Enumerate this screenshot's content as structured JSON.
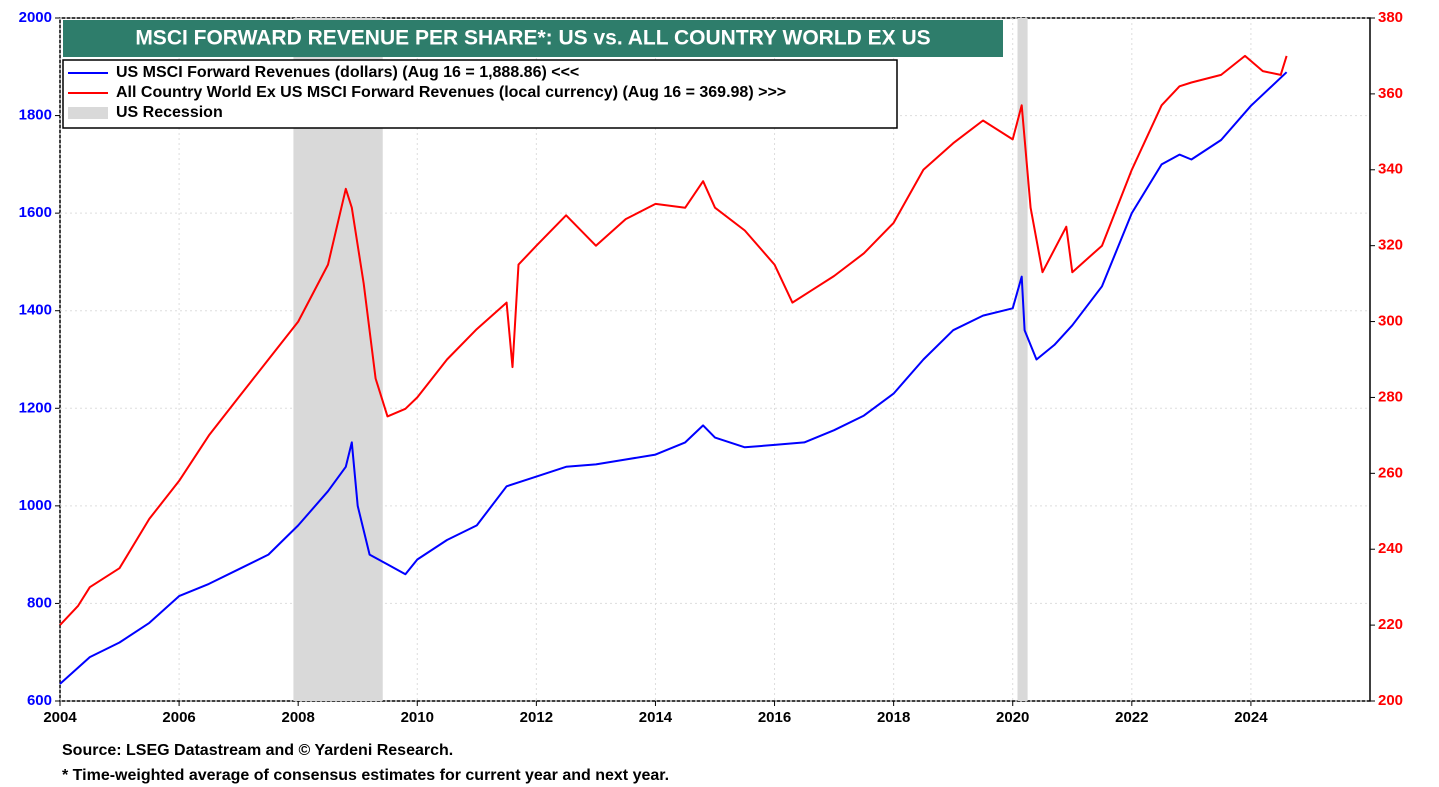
{
  "chart_data": {
    "type": "line",
    "title": "MSCI FORWARD REVENUE PER SHARE*: US vs. ALL COUNTRY WORLD EX US",
    "notes": [
      "Source: LSEG Datastream and © Yardeni Research.",
      "* Time-weighted average of consensus estimates for current year and next year."
    ],
    "xlim": [
      2004,
      2026
    ],
    "xticks": [
      2004,
      2006,
      2008,
      2010,
      2012,
      2014,
      2016,
      2018,
      2020,
      2022,
      2024
    ],
    "ylim": [
      600,
      2000
    ],
    "yticks": [
      600,
      800,
      1000,
      1200,
      1400,
      1600,
      1800,
      2000
    ],
    "y2lim": [
      200,
      380
    ],
    "y2ticks": [
      200,
      220,
      240,
      260,
      280,
      300,
      320,
      340,
      360,
      380
    ],
    "grid": true,
    "recession_name": "US Recession",
    "recession_color": "#d9d9d9",
    "recessions": [
      [
        2007.92,
        2009.42
      ],
      [
        2020.08,
        2020.25
      ]
    ],
    "series": [
      {
        "name": "US MSCI Forward Revenues (dollars) (Aug 16 = 1,888.86) <<<",
        "color": "#0000ff",
        "axis": "y",
        "x": [
          2004.0,
          2004.5,
          2005.0,
          2005.5,
          2006.0,
          2006.5,
          2007.0,
          2007.5,
          2008.0,
          2008.5,
          2008.8,
          2008.9,
          2009.0,
          2009.2,
          2009.5,
          2009.8,
          2010.0,
          2010.5,
          2011.0,
          2011.5,
          2012.0,
          2012.5,
          2013.0,
          2013.5,
          2014.0,
          2014.5,
          2014.8,
          2015.0,
          2015.5,
          2016.0,
          2016.5,
          2017.0,
          2017.5,
          2018.0,
          2018.5,
          2019.0,
          2019.5,
          2020.0,
          2020.15,
          2020.2,
          2020.4,
          2020.7,
          2021.0,
          2021.5,
          2022.0,
          2022.5,
          2022.8,
          2023.0,
          2023.5,
          2024.0,
          2024.6
        ],
        "values": [
          635,
          690,
          720,
          760,
          815,
          840,
          870,
          900,
          960,
          1030,
          1080,
          1130,
          1000,
          900,
          880,
          860,
          890,
          930,
          960,
          1040,
          1060,
          1080,
          1085,
          1095,
          1105,
          1130,
          1165,
          1140,
          1120,
          1125,
          1130,
          1155,
          1185,
          1230,
          1300,
          1360,
          1390,
          1405,
          1470,
          1360,
          1300,
          1330,
          1370,
          1450,
          1600,
          1700,
          1720,
          1710,
          1750,
          1820,
          1889
        ]
      },
      {
        "name": "All Country World Ex US MSCI Forward Revenues (local currency) (Aug 16 = 369.98) >>>",
        "color": "#ff0000",
        "axis": "y2",
        "x": [
          2004.0,
          2004.3,
          2004.5,
          2005.0,
          2005.5,
          2006.0,
          2006.5,
          2007.0,
          2007.5,
          2008.0,
          2008.5,
          2008.8,
          2008.9,
          2009.1,
          2009.3,
          2009.5,
          2009.8,
          2010.0,
          2010.5,
          2011.0,
          2011.5,
          2011.6,
          2011.7,
          2012.0,
          2012.5,
          2013.0,
          2013.5,
          2014.0,
          2014.5,
          2014.8,
          2015.0,
          2015.5,
          2016.0,
          2016.3,
          2016.6,
          2017.0,
          2017.5,
          2018.0,
          2018.5,
          2019.0,
          2019.5,
          2020.0,
          2020.15,
          2020.3,
          2020.5,
          2020.9,
          2021.0,
          2021.5,
          2022.0,
          2022.5,
          2022.8,
          2023.0,
          2023.5,
          2023.9,
          2024.2,
          2024.5,
          2024.6
        ],
        "values": [
          220,
          225,
          230,
          235,
          248,
          258,
          270,
          280,
          290,
          300,
          315,
          335,
          330,
          310,
          285,
          275,
          277,
          280,
          290,
          298,
          305,
          288,
          315,
          320,
          328,
          320,
          327,
          331,
          330,
          337,
          330,
          324,
          315,
          305,
          308,
          312,
          318,
          326,
          340,
          347,
          353,
          348,
          357,
          330,
          313,
          325,
          313,
          320,
          340,
          357,
          362,
          363,
          365,
          370,
          366,
          365,
          370
        ]
      }
    ]
  }
}
